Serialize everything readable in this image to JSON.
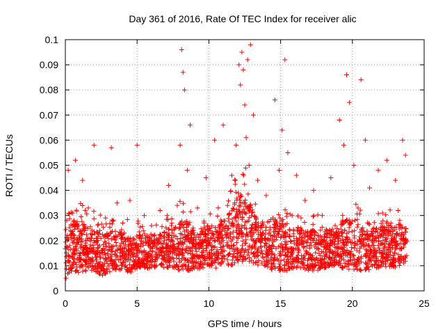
{
  "chart_data": {
    "type": "scatter",
    "title": "Day 361 of 2016, Rate Of TEC Index for receiver alic",
    "xlabel": "GPS time / hours",
    "ylabel": "ROTI / TECUs",
    "xlim": [
      0,
      25
    ],
    "ylim": [
      0,
      0.1
    ],
    "x_ticks": [
      0,
      5,
      10,
      15,
      20,
      25
    ],
    "y_ticks": [
      0,
      0.01,
      0.02,
      0.03,
      0.04,
      0.05,
      0.06,
      0.07,
      0.08,
      0.09,
      0.1
    ],
    "x_tick_labels": [
      "0",
      "5",
      "10",
      "15",
      "20",
      "25"
    ],
    "y_tick_labels": [
      "0",
      "0.01",
      "0.02",
      "0.03",
      "0.04",
      "0.05",
      "0.06",
      "0.07",
      "0.08",
      "0.09",
      "0.1"
    ],
    "grid": true,
    "marker": "+",
    "color": "#ff0000",
    "series": [
      {
        "name": "ROTI",
        "x": [
          0.05,
          0.1,
          0.15,
          0.2,
          0.3,
          0.35,
          0.5,
          0.6,
          0.7,
          0.8,
          0.9,
          1.0,
          1.2,
          1.4,
          1.6,
          1.8,
          2.0,
          2.2,
          2.4,
          2.6,
          2.8,
          3.0,
          3.2,
          3.4,
          3.6,
          3.8,
          4.0,
          4.2,
          4.5,
          4.8,
          5.0,
          5.2,
          5.5,
          5.8,
          6.0,
          6.3,
          6.6,
          6.9,
          7.2,
          7.5,
          7.8,
          8.0,
          8.1,
          8.2,
          8.3,
          8.5,
          8.7,
          8.9,
          9.2,
          9.5,
          9.8,
          10.1,
          10.4,
          10.7,
          11.0,
          11.3,
          11.6,
          11.9,
          12.1,
          12.2,
          12.3,
          12.4,
          12.5,
          12.6,
          12.7,
          12.8,
          12.9,
          13.1,
          13.4,
          13.7,
          14.0,
          14.3,
          14.6,
          14.9,
          15.1,
          15.3,
          15.5,
          15.8,
          16.1,
          16.4,
          16.7,
          17.0,
          17.3,
          17.6,
          17.9,
          18.2,
          18.5,
          18.8,
          19.1,
          19.4,
          19.6,
          19.8,
          20.1,
          20.4,
          20.6,
          20.9,
          21.2,
          21.5,
          21.8,
          22.1,
          22.4,
          22.7,
          23.0,
          23.3,
          23.5,
          23.7
        ],
        "y": [
          0.005,
          0.028,
          0.012,
          0.048,
          0.018,
          0.022,
          0.031,
          0.015,
          0.052,
          0.019,
          0.026,
          0.014,
          0.044,
          0.02,
          0.033,
          0.017,
          0.058,
          0.011,
          0.024,
          0.016,
          0.029,
          0.013,
          0.057,
          0.021,
          0.035,
          0.018,
          0.027,
          0.01,
          0.036,
          0.019,
          0.058,
          0.022,
          0.03,
          0.015,
          0.026,
          0.018,
          0.032,
          0.02,
          0.042,
          0.017,
          0.034,
          0.058,
          0.096,
          0.087,
          0.08,
          0.048,
          0.066,
          0.025,
          0.033,
          0.019,
          0.045,
          0.024,
          0.06,
          0.021,
          0.066,
          0.034,
          0.046,
          0.058,
          0.09,
          0.082,
          0.095,
          0.088,
          0.074,
          0.061,
          0.092,
          0.05,
          0.098,
          0.07,
          0.044,
          0.026,
          0.038,
          0.021,
          0.076,
          0.048,
          0.064,
          0.092,
          0.055,
          0.03,
          0.046,
          0.024,
          0.036,
          0.018,
          0.04,
          0.022,
          0.03,
          0.017,
          0.045,
          0.026,
          0.068,
          0.058,
          0.086,
          0.075,
          0.05,
          0.033,
          0.084,
          0.06,
          0.041,
          0.025,
          0.048,
          0.031,
          0.052,
          0.02,
          0.044,
          0.028,
          0.06,
          0.054
        ]
      }
    ],
    "band_hours": [
      0,
      0.5,
      1,
      1.5,
      2,
      2.5,
      3,
      3.5,
      4,
      4.5,
      5,
      5.5,
      6,
      6.5,
      7,
      7.5,
      8,
      8.5,
      9,
      9.5,
      10,
      10.5,
      11,
      11.5,
      12,
      12.5,
      13,
      13.5,
      14,
      14.5,
      15,
      15.5,
      16,
      16.5,
      17,
      17.5,
      18,
      18.5,
      19,
      19.5,
      20,
      20.5,
      21,
      21.5,
      22,
      22.5,
      23,
      23.5,
      23.8
    ],
    "band_low": [
      0.006,
      0.008,
      0.007,
      0.008,
      0.007,
      0.006,
      0.007,
      0.008,
      0.008,
      0.007,
      0.009,
      0.009,
      0.009,
      0.01,
      0.009,
      0.009,
      0.008,
      0.008,
      0.008,
      0.009,
      0.01,
      0.009,
      0.01,
      0.01,
      0.011,
      0.012,
      0.011,
      0.01,
      0.01,
      0.008,
      0.008,
      0.008,
      0.009,
      0.009,
      0.008,
      0.008,
      0.009,
      0.01,
      0.009,
      0.009,
      0.008,
      0.008,
      0.008,
      0.009,
      0.009,
      0.009,
      0.009,
      0.01,
      0.012
    ],
    "band_high": [
      0.032,
      0.036,
      0.035,
      0.034,
      0.033,
      0.03,
      0.029,
      0.031,
      0.03,
      0.028,
      0.028,
      0.027,
      0.028,
      0.027,
      0.03,
      0.03,
      0.036,
      0.035,
      0.03,
      0.031,
      0.033,
      0.033,
      0.036,
      0.04,
      0.048,
      0.05,
      0.042,
      0.035,
      0.034,
      0.036,
      0.038,
      0.034,
      0.032,
      0.031,
      0.03,
      0.031,
      0.031,
      0.031,
      0.032,
      0.036,
      0.036,
      0.033,
      0.031,
      0.031,
      0.032,
      0.033,
      0.032,
      0.033,
      0.03
    ]
  }
}
